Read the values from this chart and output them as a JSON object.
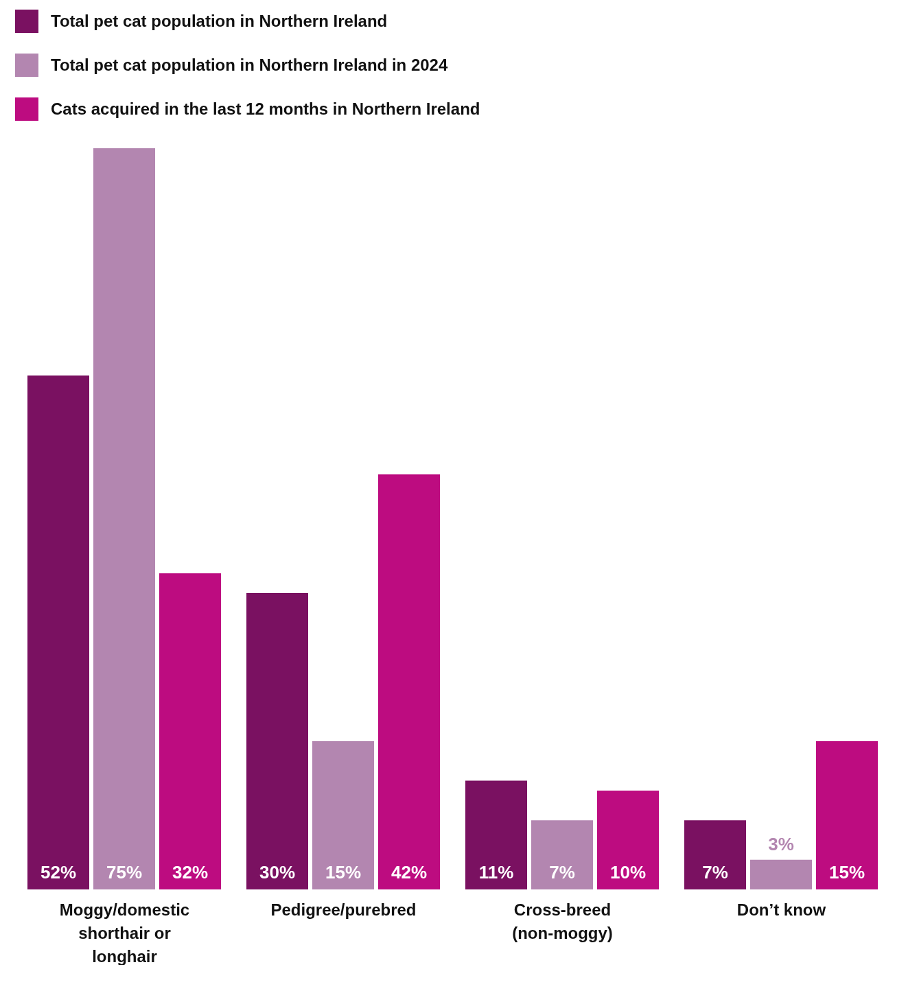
{
  "chart_data": {
    "type": "bar",
    "categories": [
      "Moggy/domestic shorthair or longhair",
      "Pedigree/purebred",
      "Cross-breed (non-moggy)",
      "Don’t know"
    ],
    "series": [
      {
        "name": "Total pet cat population in Northern Ireland",
        "color": "#7a1161",
        "values": [
          52,
          30,
          11,
          7
        ],
        "value_labels": [
          "52%",
          "30%",
          "11%",
          "7%"
        ]
      },
      {
        "name": "Total pet cat population in Northern Ireland in 2024",
        "color": "#b386b0",
        "values": [
          75,
          15,
          7,
          3
        ],
        "value_labels": [
          "75%",
          "15%",
          "7%",
          "3%"
        ]
      },
      {
        "name": "Cats acquired in the last 12 months in Northern Ireland",
        "color": "#bd0c80",
        "values": [
          32,
          42,
          10,
          15
        ],
        "value_labels": [
          "32%",
          "42%",
          "10%",
          "15%"
        ]
      }
    ],
    "legend": "top left"
  }
}
